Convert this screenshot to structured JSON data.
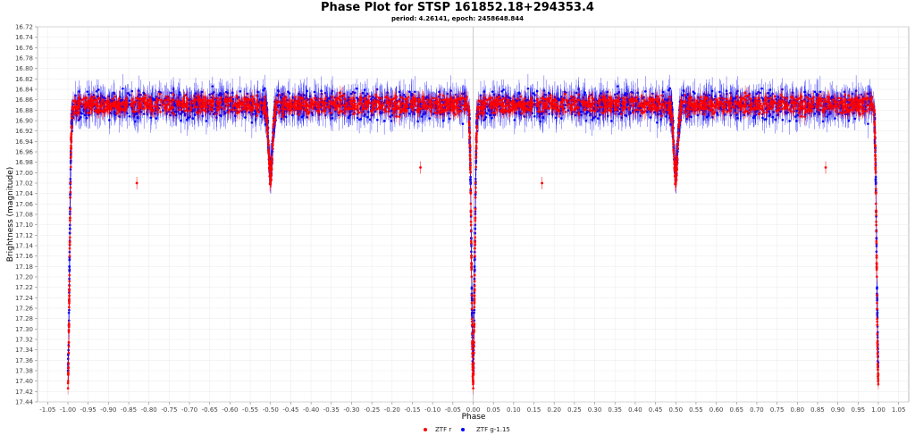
{
  "chart_data": {
    "type": "scatter",
    "title": "Phase Plot for STSP 161852.18+294353.4",
    "subtitle": "period: 4.26141, epoch: 2458648.844",
    "xlabel": "Phase",
    "ylabel": "Brightness (magnitude)",
    "xlim": [
      -1.075,
      1.075
    ],
    "ylim": [
      16.72,
      17.44
    ],
    "y_inverted": true,
    "x_ticks": [
      "-1.05",
      "-1.00",
      "-0.95",
      "-0.90",
      "-0.85",
      "-0.80",
      "-0.75",
      "-0.70",
      "-0.65",
      "-0.60",
      "-0.55",
      "-0.50",
      "-0.45",
      "-0.40",
      "-0.35",
      "-0.30",
      "-0.25",
      "-0.20",
      "-0.15",
      "-0.10",
      "-0.05",
      "0.00",
      "0.05",
      "0.10",
      "0.15",
      "0.20",
      "0.25",
      "0.30",
      "0.35",
      "0.40",
      "0.45",
      "0.50",
      "0.55",
      "0.60",
      "0.65",
      "0.70",
      "0.75",
      "0.80",
      "0.85",
      "0.90",
      "0.95",
      "1.00",
      "1.05"
    ],
    "y_ticks": [
      "16.72",
      "16.74",
      "16.76",
      "16.78",
      "16.80",
      "16.82",
      "16.84",
      "16.86",
      "16.88",
      "16.90",
      "16.92",
      "16.94",
      "16.96",
      "16.98",
      "17.00",
      "17.02",
      "17.04",
      "17.06",
      "17.08",
      "17.10",
      "17.12",
      "17.14",
      "17.16",
      "17.18",
      "17.20",
      "17.22",
      "17.24",
      "17.26",
      "17.28",
      "17.30",
      "17.32",
      "17.34",
      "17.36",
      "17.38",
      "17.40",
      "17.42",
      "17.44"
    ],
    "grid": true,
    "legend_position": "bottom-center",
    "series": [
      {
        "name": "ZTF r",
        "color": "#ff0000",
        "baseline": 16.87,
        "scatter": 0.03,
        "error": 0.012,
        "eclipses": [
          {
            "phase": 0.0,
            "depth": 0.53,
            "width": 0.004
          },
          {
            "phase": 0.5,
            "depth": 0.14,
            "width": 0.005
          }
        ],
        "outliers": [
          {
            "x": -0.83,
            "y": 17.02
          },
          {
            "x": -0.13,
            "y": 16.99
          },
          {
            "x": 0.17,
            "y": 17.02
          },
          {
            "x": 0.87,
            "y": 16.99
          }
        ]
      },
      {
        "name": "ZTF g-1.15",
        "color": "#0000ff",
        "baseline": 16.87,
        "scatter": 0.045,
        "error": 0.022,
        "eclipses": [
          {
            "phase": 0.0,
            "depth": 0.5,
            "width": 0.004
          },
          {
            "phase": 0.5,
            "depth": 0.13,
            "width": 0.005
          }
        ],
        "outliers": []
      }
    ],
    "vertical_line_at": 0.0
  }
}
